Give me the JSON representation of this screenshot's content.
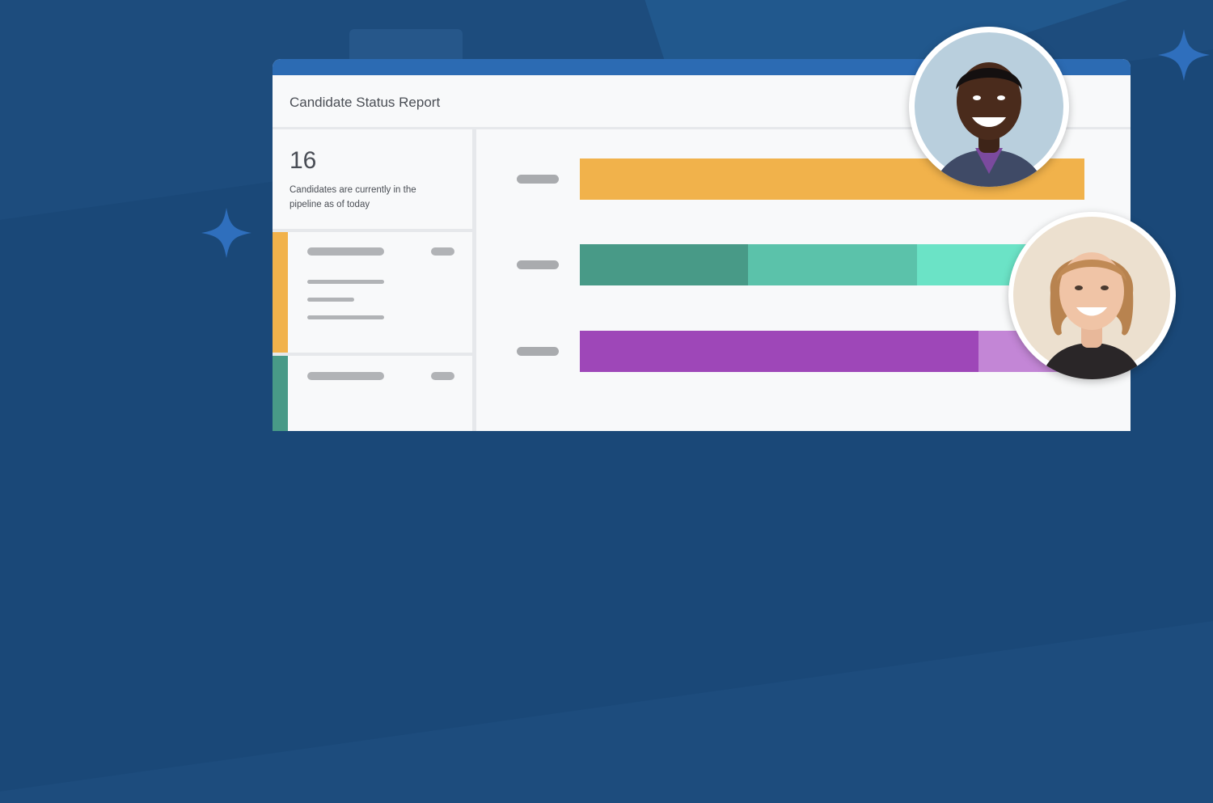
{
  "report": {
    "title": "Candidate Status Report",
    "summary_count": "16",
    "summary_text": "Candidates are currently in the pipeline as of today"
  },
  "icons": [
    "sparkle-icon",
    "sparkle-icon"
  ],
  "colors": {
    "background": "#1d4c7d",
    "window_topbar": "#2c6bb3",
    "accent_orange": "#f1b24b",
    "teal_dark": "#489a87",
    "teal_mid": "#5bc2aa",
    "teal_light": "#6be3c6",
    "purple_dark": "#9e47b8",
    "purple_light": "#c386d6"
  },
  "chart_data": {
    "type": "bar",
    "orientation": "horizontal",
    "stacked": true,
    "categories": [
      "",
      "",
      ""
    ],
    "series_values": [
      [
        1.0
      ],
      [
        0.333,
        0.336,
        0.331
      ],
      [
        0.79,
        0.21
      ]
    ],
    "series_colors": [
      [
        "#f1b24b"
      ],
      [
        "#489a87",
        "#5bc2aa",
        "#6be3c6"
      ],
      [
        "#9e47b8",
        "#c386d6"
      ]
    ],
    "xlim": [
      0,
      1
    ]
  }
}
